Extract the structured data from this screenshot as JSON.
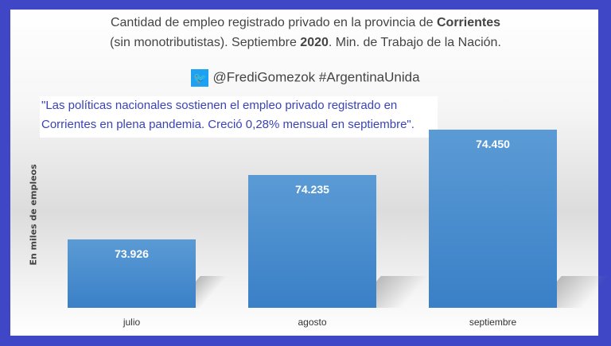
{
  "header": {
    "title_line1_pre": "Cantidad de empleo registrado privado en la provincia de ",
    "title_line1_bold": "Corrientes",
    "title_line2_pre": "(sin monotributistas). Septiembre ",
    "title_line2_bold": "2020",
    "title_line2_post": ".  Min. de Trabajo de la Nación.",
    "twitter_handle": "@FrediGomezok #ArgentinaUnida",
    "quote_line1": "\"Las políticas nacionales sostienen el empleo privado registrado en",
    "quote_line2": "Corrientes en plena pandemia. Creció 0,28% mensual en septiembre\"."
  },
  "chart_data": {
    "type": "bar",
    "title": "Cantidad de empleo registrado privado en la provincia de Corrientes (sin monotributistas). Septiembre 2020. Min. de Trabajo de la Nación.",
    "xlabel": "",
    "ylabel": "En miles de empleos",
    "categories": [
      "julio",
      "agosto",
      "septiembre"
    ],
    "values": [
      73.926,
      74.235,
      74.45
    ],
    "value_labels": [
      "73.926",
      "74.235",
      "74.450"
    ],
    "ylim": [
      73.6,
      74.55
    ],
    "bar_color": "#5b9bd5"
  }
}
